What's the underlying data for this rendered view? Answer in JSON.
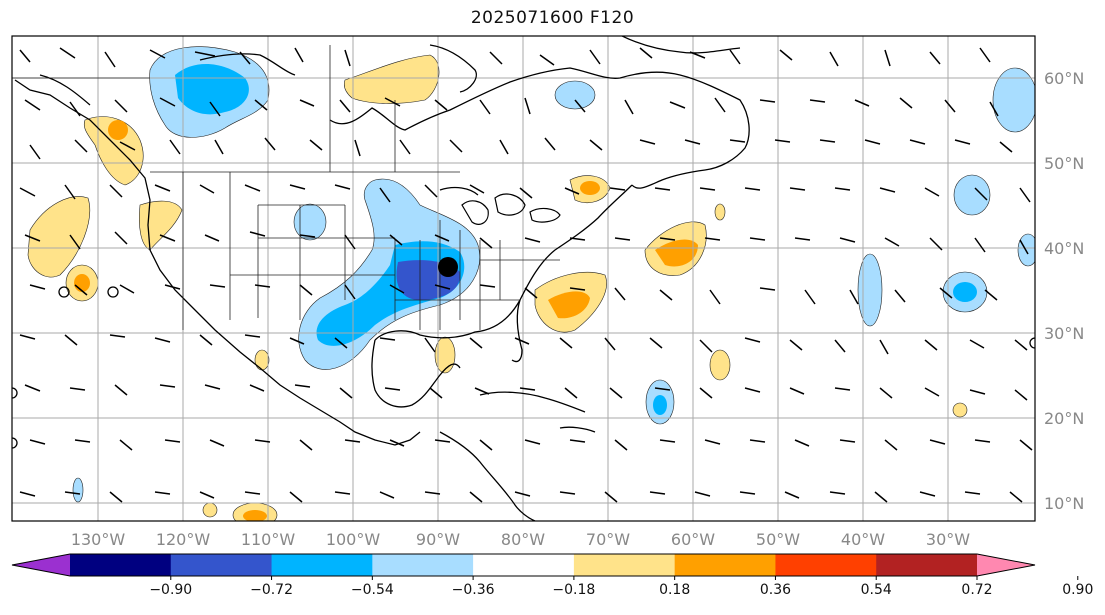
{
  "title": "2025071600 F120",
  "lon_labels": [
    "130°W",
    "120°W",
    "110°W",
    "100°W",
    "90°W",
    "80°W",
    "70°W",
    "60°W",
    "50°W",
    "40°W",
    "30°W"
  ],
  "lat_labels": [
    "60°N",
    "50°N",
    "40°N",
    "30°N",
    "20°N",
    "10°N"
  ],
  "colorbar": {
    "labels": [
      "−0.90",
      "−0.72",
      "−0.54",
      "−0.36",
      "−0.18",
      "0.18",
      "0.36",
      "0.54",
      "0.72",
      "0.90"
    ],
    "colors": [
      "#9b30d0",
      "#000080",
      "#3455cc",
      "#00b4ff",
      "#a8ddff",
      "#ffffff",
      "#ffe38a",
      "#ffa000",
      "#ff4000",
      "#b22222",
      "#ff88b0"
    ]
  },
  "marker": {
    "name": "point-marker",
    "lon": -88.5,
    "lat": 38.0
  }
}
